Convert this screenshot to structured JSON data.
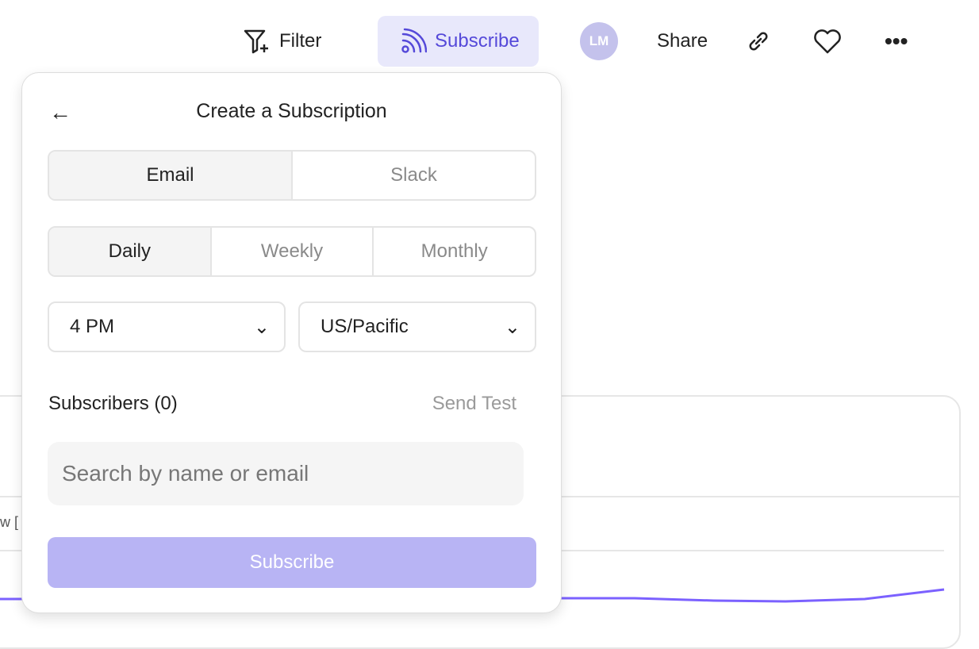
{
  "toolbar": {
    "filter": "Filter",
    "subscribe": "Subscribe",
    "avatar": "LM",
    "share": "Share"
  },
  "background": {
    "cut_text": "w ["
  },
  "popup": {
    "title": "Create a Subscription",
    "channels": [
      "Email",
      "Slack"
    ],
    "selected_channel": "Email",
    "frequencies": [
      "Daily",
      "Weekly",
      "Monthly"
    ],
    "selected_frequency": "Daily",
    "time": "4 PM",
    "timezone": "US/Pacific",
    "subscribers_label": "Subscribers (0)",
    "send_test": "Send Test",
    "search_placeholder": "Search by name or email",
    "submit": "Subscribe"
  },
  "colors": {
    "accent": "#5549d9",
    "accent_bg": "#e8e8fb",
    "button_disabled": "#b8b4f4",
    "line": "#7b61ff"
  }
}
